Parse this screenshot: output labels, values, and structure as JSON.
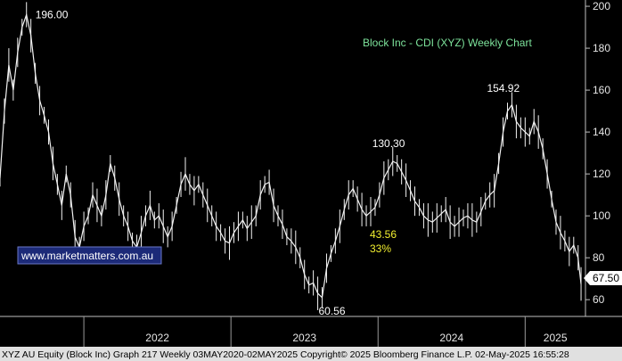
{
  "chart_data": {
    "type": "line",
    "title": "Block Inc - CDI (XYZ) Weekly Chart",
    "x_periods": [
      "2022",
      "2023",
      "2024",
      "2025"
    ],
    "y_ticks": [
      60,
      80,
      100,
      120,
      140,
      160,
      180,
      200
    ],
    "ylim": [
      52,
      203
    ],
    "xlim": [
      2021.43,
      2025.41
    ],
    "grid": false,
    "series": [
      {
        "points": [
          [
            2021.43,
            118
          ],
          [
            2021.46,
            150
          ],
          [
            2021.49,
            172
          ],
          [
            2021.52,
            160
          ],
          [
            2021.55,
            178
          ],
          [
            2021.58,
            190
          ],
          [
            2021.61,
            196
          ],
          [
            2021.64,
            186
          ],
          [
            2021.67,
            168
          ],
          [
            2021.7,
            155
          ],
          [
            2021.73,
            148
          ],
          [
            2021.76,
            140
          ],
          [
            2021.79,
            125
          ],
          [
            2021.82,
            115
          ],
          [
            2021.85,
            105
          ],
          [
            2021.88,
            120
          ],
          [
            2021.91,
            110
          ],
          [
            2021.94,
            90
          ],
          [
            2021.97,
            85
          ],
          [
            2022.0,
            95
          ],
          [
            2022.03,
            100
          ],
          [
            2022.06,
            110
          ],
          [
            2022.09,
            105
          ],
          [
            2022.12,
            100
          ],
          [
            2022.15,
            110
          ],
          [
            2022.18,
            125
          ],
          [
            2022.21,
            118
          ],
          [
            2022.24,
            108
          ],
          [
            2022.27,
            100
          ],
          [
            2022.3,
            95
          ],
          [
            2022.33,
            88
          ],
          [
            2022.36,
            85
          ],
          [
            2022.39,
            92
          ],
          [
            2022.42,
            100
          ],
          [
            2022.45,
            105
          ],
          [
            2022.48,
            98
          ],
          [
            2022.51,
            100
          ],
          [
            2022.54,
            95
          ],
          [
            2022.57,
            90
          ],
          [
            2022.6,
            95
          ],
          [
            2022.63,
            105
          ],
          [
            2022.66,
            115
          ],
          [
            2022.69,
            120
          ],
          [
            2022.72,
            115
          ],
          [
            2022.75,
            112
          ],
          [
            2022.78,
            115
          ],
          [
            2022.81,
            110
          ],
          [
            2022.84,
            105
          ],
          [
            2022.87,
            100
          ],
          [
            2022.9,
            95
          ],
          [
            2022.93,
            92
          ],
          [
            2022.96,
            88
          ],
          [
            2022.99,
            87
          ],
          [
            2023.02,
            92
          ],
          [
            2023.05,
            95
          ],
          [
            2023.08,
            98
          ],
          [
            2023.11,
            94
          ],
          [
            2023.14,
            97
          ],
          [
            2023.17,
            100
          ],
          [
            2023.2,
            110
          ],
          [
            2023.23,
            115
          ],
          [
            2023.26,
            116
          ],
          [
            2023.29,
            105
          ],
          [
            2023.32,
            100
          ],
          [
            2023.35,
            96
          ],
          [
            2023.38,
            90
          ],
          [
            2023.41,
            88
          ],
          [
            2023.44,
            85
          ],
          [
            2023.47,
            80
          ],
          [
            2023.5,
            72
          ],
          [
            2023.53,
            67
          ],
          [
            2023.56,
            68
          ],
          [
            2023.59,
            63
          ],
          [
            2023.62,
            61
          ],
          [
            2023.65,
            75
          ],
          [
            2023.68,
            82
          ],
          [
            2023.71,
            88
          ],
          [
            2023.74,
            95
          ],
          [
            2023.77,
            103
          ],
          [
            2023.8,
            110
          ],
          [
            2023.83,
            113
          ],
          [
            2023.86,
            108
          ],
          [
            2023.89,
            103
          ],
          [
            2023.92,
            100
          ],
          [
            2023.95,
            102
          ],
          [
            2023.98,
            104
          ],
          [
            2024.01,
            110
          ],
          [
            2024.04,
            118
          ],
          [
            2024.07,
            122
          ],
          [
            2024.1,
            126
          ],
          [
            2024.13,
            125
          ],
          [
            2024.16,
            121
          ],
          [
            2024.19,
            117
          ],
          [
            2024.22,
            112
          ],
          [
            2024.25,
            107
          ],
          [
            2024.28,
            104
          ],
          [
            2024.31,
            100
          ],
          [
            2024.34,
            98
          ],
          [
            2024.37,
            97
          ],
          [
            2024.4,
            99
          ],
          [
            2024.43,
            101
          ],
          [
            2024.46,
            103
          ],
          [
            2024.49,
            97
          ],
          [
            2024.52,
            95
          ],
          [
            2024.55,
            97
          ],
          [
            2024.58,
            99
          ],
          [
            2024.61,
            100
          ],
          [
            2024.64,
            98
          ],
          [
            2024.67,
            97
          ],
          [
            2024.7,
            102
          ],
          [
            2024.73,
            107
          ],
          [
            2024.76,
            110
          ],
          [
            2024.79,
            112
          ],
          [
            2024.82,
            125
          ],
          [
            2024.85,
            140
          ],
          [
            2024.88,
            150
          ],
          [
            2024.91,
            153
          ],
          [
            2024.94,
            145
          ],
          [
            2024.97,
            142
          ],
          [
            2025.0,
            140
          ],
          [
            2025.03,
            138
          ],
          [
            2025.06,
            145
          ],
          [
            2025.09,
            140
          ],
          [
            2025.12,
            132
          ],
          [
            2025.15,
            120
          ],
          [
            2025.18,
            108
          ],
          [
            2025.21,
            97
          ],
          [
            2025.24,
            92
          ],
          [
            2025.27,
            88
          ],
          [
            2025.3,
            83
          ],
          [
            2025.33,
            86
          ],
          [
            2025.36,
            80
          ],
          [
            2025.38,
            67.5
          ]
        ]
      }
    ],
    "annotations": {
      "peak_2021": {
        "text": "196.00",
        "x": 2021.61,
        "y": 196
      },
      "trough_2023": {
        "text": "60.56",
        "x": 2023.62,
        "y": 60.56
      },
      "peak_2024": {
        "text": "130.30",
        "x": 2024.13,
        "y": 130.3
      },
      "peak_2024_late": {
        "text": "154.92",
        "x": 2024.91,
        "y": 154.92
      },
      "move_abs": "43.56",
      "move_pct": "33%"
    },
    "last_price": "67.50"
  },
  "watermark": "www.marketmatters.com.au",
  "footer": "XYZ AU Equity (Block Inc) Graph 217  Weekly 03MAY2020-02MAY2025 Copyright© 2025 Bloomberg Finance L.P. 02-May-2025 16:55:28",
  "colors": {
    "background": "#000000",
    "price_line": "#f2f2f2",
    "title": "#7de39b",
    "annotation": "#f2ef2f",
    "footer_bg": "#e0e0e0",
    "last_price_tag": "#ffffff"
  }
}
